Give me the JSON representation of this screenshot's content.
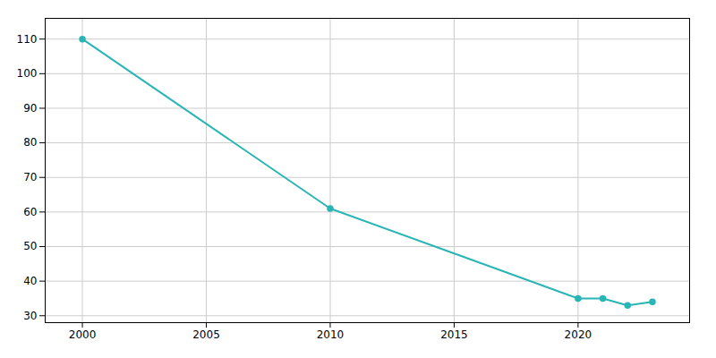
{
  "chart_data": {
    "type": "line",
    "x": [
      2000,
      2010,
      2020,
      2021,
      2022,
      2023
    ],
    "values": [
      110,
      61,
      35,
      35,
      33,
      34
    ],
    "color": "#2ab5b5",
    "marker": "circle",
    "xlim": [
      1998.5,
      2024.5
    ],
    "ylim": [
      28,
      116
    ],
    "xticks": [
      2000,
      2005,
      2010,
      2015,
      2020
    ],
    "yticks": [
      30,
      40,
      50,
      60,
      70,
      80,
      90,
      100,
      110
    ],
    "grid": true
  }
}
